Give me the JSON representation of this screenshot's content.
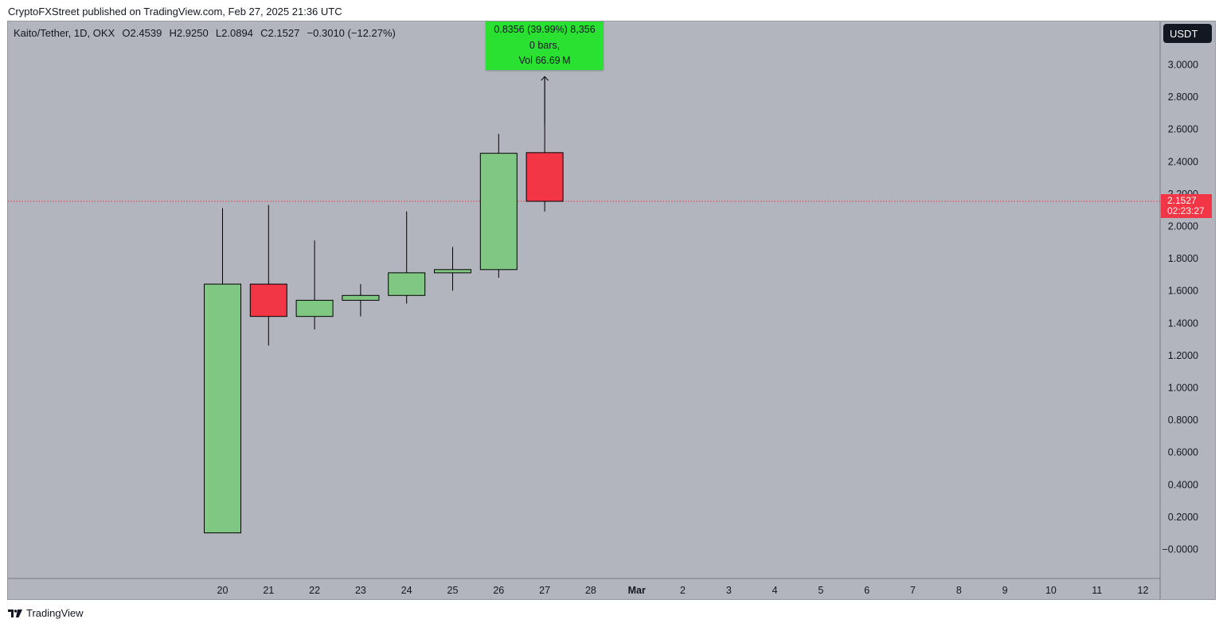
{
  "caption": "CryptoFXStreet published on TradingView.com, Feb 27, 2025 21:36 UTC",
  "legend": {
    "symbol": "Kaito/Tether, 1D, OKX",
    "open": "O2.4539",
    "high": "H2.9250",
    "low": "L2.0894",
    "close": "C2.1527",
    "change": "−0.3010 (−12.27%)"
  },
  "currency": "USDT",
  "measure": {
    "line1": "0.8356 (39.99%) 8,356",
    "line2": "0 bars,",
    "line3": "Vol 66.69 M"
  },
  "last_price": {
    "value": "2.1527",
    "countdown": "02:23:27"
  },
  "footer": {
    "brand": "TradingView"
  },
  "colors": {
    "background": "#b2b5be",
    "up": "#81c784",
    "down": "#f23645",
    "measure": "#2ae132",
    "price_line": "#f23645"
  },
  "chart_data": {
    "type": "candlestick",
    "x_ticks": [
      "20",
      "21",
      "22",
      "23",
      "24",
      "25",
      "26",
      "27",
      "28",
      "Mar",
      "2",
      "3",
      "4",
      "5",
      "6",
      "7",
      "8",
      "9",
      "10",
      "11",
      "12"
    ],
    "y_ticks": [
      "3.0000",
      "2.8000",
      "2.6000",
      "2.4000",
      "2.2000",
      "2.0000",
      "1.8000",
      "1.6000",
      "1.4000",
      "1.2000",
      "1.0000",
      "0.8000",
      "0.6000",
      "0.4000",
      "0.2000",
      "−0.0000"
    ],
    "ylim": [
      -0.18,
      3.3
    ],
    "candles": [
      {
        "date": "20",
        "open": 0.1,
        "high": 2.11,
        "low": 0.1,
        "close": 1.64
      },
      {
        "date": "21",
        "open": 1.64,
        "high": 2.13,
        "low": 1.26,
        "close": 1.44
      },
      {
        "date": "22",
        "open": 1.44,
        "high": 1.91,
        "low": 1.36,
        "close": 1.54
      },
      {
        "date": "23",
        "open": 1.54,
        "high": 1.64,
        "low": 1.44,
        "close": 1.57
      },
      {
        "date": "24",
        "open": 1.57,
        "high": 2.09,
        "low": 1.52,
        "close": 1.71
      },
      {
        "date": "25",
        "open": 1.71,
        "high": 1.87,
        "low": 1.6,
        "close": 1.73
      },
      {
        "date": "26",
        "open": 1.73,
        "high": 2.57,
        "low": 1.68,
        "close": 2.45
      },
      {
        "date": "27",
        "open": 2.4539,
        "high": 2.925,
        "low": 2.0894,
        "close": 2.1527
      }
    ],
    "last_price": 2.1527
  }
}
